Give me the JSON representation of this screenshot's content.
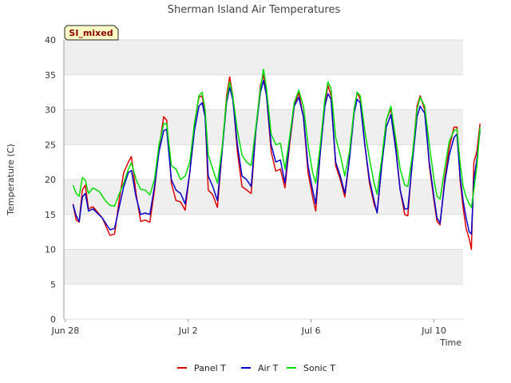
{
  "chart_data": {
    "type": "line",
    "title": "Sherman Island Air Temperatures",
    "xlabel": "Time",
    "ylabel": "Temperature (C)",
    "tag": "SI_mixed",
    "ylim": [
      0,
      40
    ],
    "yticks": [
      0,
      5,
      10,
      15,
      20,
      25,
      30,
      35,
      40
    ],
    "xlim_days": [
      -0.05,
      12.95
    ],
    "xticks": [
      {
        "day": 0,
        "label": "Jun 28"
      },
      {
        "day": 4,
        "label": "Jul 2"
      },
      {
        "day": 8,
        "label": "Jul 6"
      },
      {
        "day": 12,
        "label": "Jul 10"
      }
    ],
    "grid": true,
    "legend_position": "bottom",
    "series": [
      {
        "name": "Panel T",
        "color": "#dd0000",
        "points": [
          [
            0.25,
            16.5
          ],
          [
            0.35,
            14.2
          ],
          [
            0.45,
            13.9
          ],
          [
            0.55,
            18.5
          ],
          [
            0.65,
            19.2
          ],
          [
            0.75,
            15.8
          ],
          [
            0.9,
            16.1
          ],
          [
            1.2,
            14.5
          ],
          [
            1.45,
            12.0
          ],
          [
            1.6,
            12.2
          ],
          [
            1.75,
            17.0
          ],
          [
            1.9,
            21.0
          ],
          [
            2.05,
            22.5
          ],
          [
            2.15,
            23.3
          ],
          [
            2.3,
            18.0
          ],
          [
            2.45,
            14.0
          ],
          [
            2.6,
            14.2
          ],
          [
            2.75,
            13.9
          ],
          [
            2.9,
            18.5
          ],
          [
            3.05,
            24.5
          ],
          [
            3.2,
            29.0
          ],
          [
            3.3,
            28.5
          ],
          [
            3.45,
            19.5
          ],
          [
            3.6,
            17.0
          ],
          [
            3.75,
            16.8
          ],
          [
            3.9,
            15.6
          ],
          [
            4.05,
            21.0
          ],
          [
            4.2,
            28.0
          ],
          [
            4.35,
            31.8
          ],
          [
            4.45,
            32.0
          ],
          [
            4.55,
            29.5
          ],
          [
            4.65,
            18.5
          ],
          [
            4.8,
            17.8
          ],
          [
            4.95,
            16.0
          ],
          [
            5.1,
            24.0
          ],
          [
            5.25,
            32.0
          ],
          [
            5.35,
            34.7
          ],
          [
            5.45,
            32.0
          ],
          [
            5.6,
            24.0
          ],
          [
            5.75,
            19.0
          ],
          [
            5.9,
            18.5
          ],
          [
            6.05,
            18.0
          ],
          [
            6.2,
            27.0
          ],
          [
            6.35,
            33.5
          ],
          [
            6.45,
            35.0
          ],
          [
            6.55,
            32.0
          ],
          [
            6.7,
            24.0
          ],
          [
            6.85,
            21.2
          ],
          [
            7.0,
            21.5
          ],
          [
            7.15,
            18.8
          ],
          [
            7.3,
            25.0
          ],
          [
            7.45,
            30.5
          ],
          [
            7.6,
            32.5
          ],
          [
            7.75,
            29.0
          ],
          [
            7.9,
            21.0
          ],
          [
            8.05,
            17.5
          ],
          [
            8.15,
            15.5
          ],
          [
            8.3,
            24.0
          ],
          [
            8.45,
            31.0
          ],
          [
            8.55,
            33.5
          ],
          [
            8.65,
            32.0
          ],
          [
            8.8,
            22.0
          ],
          [
            8.95,
            20.0
          ],
          [
            9.1,
            17.5
          ],
          [
            9.25,
            23.0
          ],
          [
            9.4,
            30.0
          ],
          [
            9.5,
            32.5
          ],
          [
            9.6,
            31.5
          ],
          [
            9.75,
            25.0
          ],
          [
            9.9,
            19.5
          ],
          [
            10.05,
            16.5
          ],
          [
            10.15,
            15.3
          ],
          [
            10.3,
            22.0
          ],
          [
            10.45,
            28.5
          ],
          [
            10.6,
            30.2
          ],
          [
            10.75,
            25.0
          ],
          [
            10.9,
            18.5
          ],
          [
            11.05,
            15.0
          ],
          [
            11.15,
            14.8
          ],
          [
            11.3,
            23.0
          ],
          [
            11.45,
            30.5
          ],
          [
            11.55,
            32.0
          ],
          [
            11.7,
            30.0
          ],
          [
            11.85,
            22.0
          ],
          [
            12.0,
            17.0
          ],
          [
            12.1,
            14.0
          ],
          [
            12.2,
            13.5
          ],
          [
            12.35,
            20.0
          ],
          [
            12.5,
            24.5
          ],
          [
            12.65,
            27.5
          ],
          [
            12.75,
            27.5
          ],
          [
            12.85,
            20.0
          ],
          [
            12.95,
            16.0
          ],
          [
            13.05,
            13.0
          ],
          [
            13.15,
            11.5
          ],
          [
            13.22,
            10.0
          ],
          [
            13.3,
            22.5
          ],
          [
            13.4,
            24.0
          ],
          [
            13.5,
            28.0
          ]
        ]
      },
      {
        "name": "Air T",
        "color": "#0000cc",
        "points": [
          [
            0.25,
            16.4
          ],
          [
            0.35,
            14.8
          ],
          [
            0.45,
            14.0
          ],
          [
            0.55,
            17.5
          ],
          [
            0.65,
            18.0
          ],
          [
            0.75,
            15.5
          ],
          [
            0.9,
            15.8
          ],
          [
            1.2,
            14.5
          ],
          [
            1.45,
            12.8
          ],
          [
            1.6,
            13.0
          ],
          [
            1.75,
            16.0
          ],
          [
            1.9,
            19.0
          ],
          [
            2.05,
            21.0
          ],
          [
            2.15,
            21.3
          ],
          [
            2.3,
            17.5
          ],
          [
            2.45,
            15.0
          ],
          [
            2.6,
            15.2
          ],
          [
            2.75,
            15.0
          ],
          [
            2.9,
            19.0
          ],
          [
            3.05,
            24.0
          ],
          [
            3.2,
            27.0
          ],
          [
            3.3,
            27.2
          ],
          [
            3.45,
            20.0
          ],
          [
            3.6,
            18.5
          ],
          [
            3.75,
            18.0
          ],
          [
            3.9,
            16.5
          ],
          [
            4.05,
            21.0
          ],
          [
            4.2,
            27.0
          ],
          [
            4.35,
            30.5
          ],
          [
            4.45,
            31.0
          ],
          [
            4.55,
            29.0
          ],
          [
            4.65,
            20.5
          ],
          [
            4.8,
            19.0
          ],
          [
            4.95,
            17.0
          ],
          [
            5.1,
            24.0
          ],
          [
            5.25,
            31.0
          ],
          [
            5.35,
            33.2
          ],
          [
            5.45,
            31.5
          ],
          [
            5.6,
            25.0
          ],
          [
            5.75,
            20.5
          ],
          [
            5.9,
            20.0
          ],
          [
            6.05,
            19.0
          ],
          [
            6.2,
            27.0
          ],
          [
            6.35,
            32.5
          ],
          [
            6.45,
            34.2
          ],
          [
            6.55,
            32.0
          ],
          [
            6.7,
            25.0
          ],
          [
            6.85,
            22.5
          ],
          [
            7.0,
            22.8
          ],
          [
            7.15,
            19.5
          ],
          [
            7.3,
            25.5
          ],
          [
            7.45,
            30.5
          ],
          [
            7.6,
            31.8
          ],
          [
            7.75,
            29.0
          ],
          [
            7.9,
            22.0
          ],
          [
            8.05,
            18.5
          ],
          [
            8.15,
            16.5
          ],
          [
            8.3,
            24.0
          ],
          [
            8.45,
            30.5
          ],
          [
            8.55,
            32.3
          ],
          [
            8.65,
            31.5
          ],
          [
            8.8,
            22.5
          ],
          [
            8.95,
            20.5
          ],
          [
            9.1,
            18.0
          ],
          [
            9.25,
            23.0
          ],
          [
            9.4,
            29.5
          ],
          [
            9.5,
            31.5
          ],
          [
            9.6,
            31.0
          ],
          [
            9.75,
            25.0
          ],
          [
            9.9,
            20.0
          ],
          [
            10.05,
            17.0
          ],
          [
            10.15,
            15.2
          ],
          [
            10.3,
            22.0
          ],
          [
            10.45,
            27.5
          ],
          [
            10.6,
            29.3
          ],
          [
            10.75,
            24.5
          ],
          [
            10.9,
            18.5
          ],
          [
            11.05,
            15.8
          ],
          [
            11.15,
            15.8
          ],
          [
            11.3,
            22.5
          ],
          [
            11.45,
            29.0
          ],
          [
            11.55,
            30.5
          ],
          [
            11.7,
            29.5
          ],
          [
            11.85,
            22.5
          ],
          [
            12.0,
            17.5
          ],
          [
            12.1,
            14.5
          ],
          [
            12.2,
            13.8
          ],
          [
            12.35,
            19.5
          ],
          [
            12.5,
            23.5
          ],
          [
            12.65,
            26.0
          ],
          [
            12.75,
            26.5
          ],
          [
            12.85,
            20.5
          ],
          [
            12.95,
            17.0
          ],
          [
            13.05,
            14.5
          ],
          [
            13.15,
            12.5
          ],
          [
            13.22,
            12.2
          ],
          [
            13.3,
            20.0
          ],
          [
            13.4,
            23.0
          ],
          [
            13.5,
            27.0
          ]
        ]
      },
      {
        "name": "Sonic T",
        "color": "#00dd00",
        "points": [
          [
            0.25,
            19.2
          ],
          [
            0.35,
            18.0
          ],
          [
            0.45,
            17.6
          ],
          [
            0.55,
            20.3
          ],
          [
            0.65,
            19.9
          ],
          [
            0.75,
            18.0
          ],
          [
            0.9,
            18.8
          ],
          [
            1.1,
            18.3
          ],
          [
            1.3,
            17.0
          ],
          [
            1.45,
            16.3
          ],
          [
            1.6,
            16.2
          ],
          [
            1.75,
            17.9
          ],
          [
            1.9,
            19.5
          ],
          [
            2.05,
            21.5
          ],
          [
            2.15,
            22.4
          ],
          [
            2.3,
            20.0
          ],
          [
            2.45,
            18.6
          ],
          [
            2.6,
            18.5
          ],
          [
            2.75,
            17.8
          ],
          [
            2.9,
            20.0
          ],
          [
            3.05,
            25.0
          ],
          [
            3.2,
            28.0
          ],
          [
            3.3,
            28.0
          ],
          [
            3.45,
            22.0
          ],
          [
            3.6,
            21.5
          ],
          [
            3.75,
            20.0
          ],
          [
            3.9,
            20.5
          ],
          [
            4.05,
            22.5
          ],
          [
            4.2,
            28.0
          ],
          [
            4.35,
            32.0
          ],
          [
            4.45,
            32.5
          ],
          [
            4.55,
            30.0
          ],
          [
            4.65,
            23.5
          ],
          [
            4.8,
            21.5
          ],
          [
            4.95,
            19.5
          ],
          [
            5.1,
            24.5
          ],
          [
            5.25,
            31.5
          ],
          [
            5.35,
            34.0
          ],
          [
            5.45,
            32.0
          ],
          [
            5.6,
            27.0
          ],
          [
            5.75,
            23.5
          ],
          [
            5.9,
            22.5
          ],
          [
            6.05,
            22.0
          ],
          [
            6.2,
            27.5
          ],
          [
            6.35,
            33.0
          ],
          [
            6.45,
            35.8
          ],
          [
            6.55,
            33.0
          ],
          [
            6.7,
            26.5
          ],
          [
            6.85,
            25.0
          ],
          [
            7.0,
            25.2
          ],
          [
            7.15,
            21.5
          ],
          [
            7.3,
            26.0
          ],
          [
            7.45,
            31.0
          ],
          [
            7.6,
            32.8
          ],
          [
            7.75,
            30.5
          ],
          [
            7.9,
            25.0
          ],
          [
            8.05,
            21.0
          ],
          [
            8.15,
            19.5
          ],
          [
            8.3,
            25.0
          ],
          [
            8.45,
            31.5
          ],
          [
            8.55,
            34.0
          ],
          [
            8.65,
            33.0
          ],
          [
            8.8,
            26.0
          ],
          [
            8.95,
            23.5
          ],
          [
            9.1,
            20.5
          ],
          [
            9.25,
            24.0
          ],
          [
            9.4,
            30.0
          ],
          [
            9.5,
            32.5
          ],
          [
            9.6,
            32.0
          ],
          [
            9.75,
            27.0
          ],
          [
            9.9,
            23.0
          ],
          [
            10.05,
            19.5
          ],
          [
            10.15,
            17.9
          ],
          [
            10.3,
            23.0
          ],
          [
            10.45,
            28.5
          ],
          [
            10.6,
            30.5
          ],
          [
            10.75,
            26.0
          ],
          [
            10.9,
            21.5
          ],
          [
            11.05,
            19.2
          ],
          [
            11.15,
            19.0
          ],
          [
            11.3,
            23.5
          ],
          [
            11.45,
            30.0
          ],
          [
            11.55,
            31.8
          ],
          [
            11.7,
            30.5
          ],
          [
            11.85,
            25.0
          ],
          [
            12.0,
            20.0
          ],
          [
            12.1,
            17.6
          ],
          [
            12.2,
            17.2
          ],
          [
            12.35,
            21.5
          ],
          [
            12.5,
            25.5
          ],
          [
            12.65,
            27.0
          ],
          [
            12.75,
            27.2
          ],
          [
            12.85,
            22.5
          ],
          [
            12.95,
            19.0
          ],
          [
            13.05,
            17.5
          ],
          [
            13.15,
            16.5
          ],
          [
            13.22,
            16.0
          ],
          [
            13.3,
            18.5
          ],
          [
            13.4,
            22.0
          ],
          [
            13.5,
            27.5
          ]
        ]
      }
    ]
  }
}
